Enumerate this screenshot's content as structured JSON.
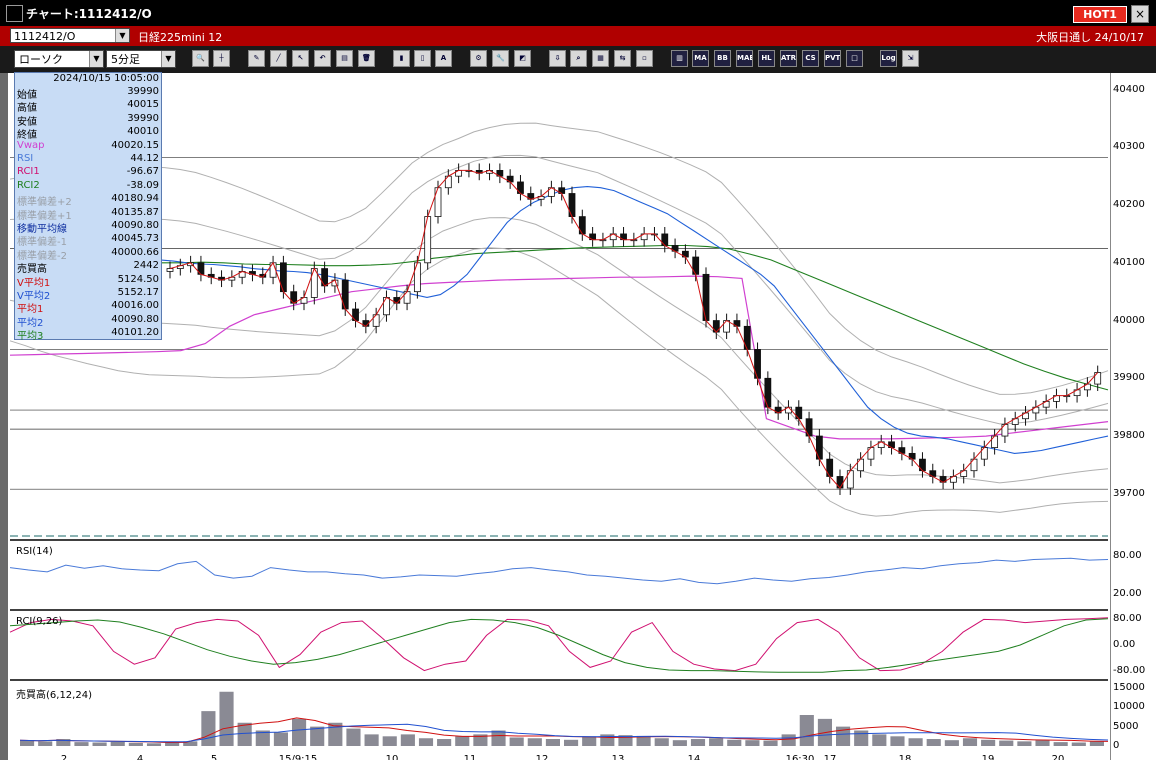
{
  "window": {
    "title": "チャート:1112412/O",
    "hot_label": "HOT1",
    "close_label": "×"
  },
  "infobar": {
    "symbol": "1112412/O",
    "instrument": "日経225mini 12",
    "exchange": "大阪日通し 24/10/17"
  },
  "toolbar": {
    "chart_type": "ローソク",
    "interval": "5分足",
    "buttons": [
      "MA",
      "BB",
      "MAE",
      "HL",
      "ATR",
      "CS",
      "PVT",
      "Log"
    ]
  },
  "info_panel": {
    "datetime": "2024/10/15 10:05:00",
    "rows": [
      {
        "k": "始値",
        "v": "39990",
        "color": "#000000"
      },
      {
        "k": "高値",
        "v": "40015",
        "color": "#000000"
      },
      {
        "k": "安値",
        "v": "39990",
        "color": "#000000"
      },
      {
        "k": "終値",
        "v": "40010",
        "color": "#000000"
      },
      {
        "k": "Vwap",
        "v": "40020.15",
        "color": "#d040d0"
      },
      {
        "k": "RSI",
        "v": "44.12",
        "color": "#4a7ad8"
      },
      {
        "k": "RCI1",
        "v": "-96.67",
        "color": "#d01070"
      },
      {
        "k": "RCI2",
        "v": "-38.09",
        "color": "#208020"
      },
      {
        "k": "標準偏差+2",
        "v": "40180.94",
        "color": "#9aa0a8"
      },
      {
        "k": "標準偏差+1",
        "v": "40135.87",
        "color": "#9aa0a8"
      },
      {
        "k": "移動平均線",
        "v": "40090.80",
        "color": "#1030a0"
      },
      {
        "k": "標準偏差-1",
        "v": "40045.73",
        "color": "#9aa0a8"
      },
      {
        "k": "標準偏差-2",
        "v": "40000.66",
        "color": "#9aa0a8"
      },
      {
        "k": "売買高",
        "v": "2442",
        "color": "#000000"
      },
      {
        "k": "V平均1",
        "v": "5124.50",
        "color": "#d01010"
      },
      {
        "k": "V平均2",
        "v": "5152.17",
        "color": "#2050d0"
      },
      {
        "k": "平均1",
        "v": "40016.00",
        "color": "#d01010"
      },
      {
        "k": "平均2",
        "v": "40090.80",
        "color": "#2050d0"
      },
      {
        "k": "平均3",
        "v": "40101.20",
        "color": "#208020"
      }
    ]
  },
  "panes": {
    "rsi_label": "RSI(14)",
    "rci_label": "RCI(9,26)",
    "vol_label": "売買高(6,12,24)"
  },
  "colors": {
    "candle_up": "#ffffff",
    "candle_down": "#111111",
    "ma_short": "#d01010",
    "ma_mid": "#2060d8",
    "ma_long": "#208020",
    "vwap": "#d040d0",
    "bands": "#b0b0b0"
  },
  "chart_data": {
    "type": "line",
    "title": "",
    "price_axis_labels": [
      "40400",
      "40300",
      "40200",
      "40100",
      "40000",
      "39900",
      "39800",
      "39700"
    ],
    "rsi_axis_labels": [
      "80.00",
      "20.00"
    ],
    "rci_axis_labels": [
      "80.00",
      "0.00",
      "-80.00"
    ],
    "vol_axis_labels": [
      "15000",
      "10000",
      "5000",
      "0"
    ],
    "x_tick_labels": [
      "2",
      "4",
      "5",
      "15/9:15",
      "10",
      "11",
      "12",
      "13",
      "14",
      "16:30",
      "17",
      "18",
      "19",
      "20"
    ],
    "ylim": [
      39620,
      40420
    ],
    "series": [
      {
        "name": "終値",
        "values": [
          40090,
          40095,
          40100,
          40080,
          40075,
          40070,
          40075,
          40085,
          40080,
          40075,
          40100,
          40050,
          40030,
          40040,
          40090,
          40060,
          40070,
          40020,
          40000,
          39990,
          40010,
          40040,
          40030,
          40050,
          40100,
          40180,
          40230,
          40250,
          40260,
          40260,
          40255,
          40260,
          40250,
          40240,
          40220,
          40210,
          40215,
          40230,
          40220,
          40180,
          40150,
          40140,
          40140,
          40150,
          40140,
          40140,
          40150,
          40150,
          40130,
          40120,
          40110,
          40080,
          40000,
          39980,
          40000,
          39990,
          39950,
          39900,
          39850,
          39840,
          39850,
          39830,
          39800,
          39760,
          39730,
          39710,
          39740,
          39760,
          39780,
          39790,
          39780,
          39770,
          39760,
          39740,
          39730,
          39720,
          39730,
          39740,
          39760,
          39780,
          39800,
          39820,
          39830,
          39840,
          39850,
          39860,
          39870,
          39870,
          39880,
          39890,
          39910
        ]
      },
      {
        "name": "平均2",
        "values": [
          40105,
          40103,
          40100,
          40098,
          40097,
          40095,
          40093,
          40090,
          40088,
          40086,
          40085,
          40083,
          40080,
          40075,
          40070,
          40065,
          40060,
          40055,
          40050,
          40045,
          40040,
          40045,
          40060,
          40080,
          40110,
          40140,
          40170,
          40190,
          40205,
          40215,
          40225,
          40230,
          40232,
          40230,
          40225,
          40215,
          40205,
          40195,
          40185,
          40170,
          40155,
          40140,
          40125,
          40110,
          40095,
          40080,
          40060,
          40030,
          40000,
          39970,
          39940,
          39910,
          39880,
          39850,
          39830,
          39815,
          39805,
          39800,
          39798,
          39795,
          39790,
          39785,
          39780,
          39775,
          39770,
          39772,
          39775,
          39780,
          39785,
          39790,
          39795,
          39800
        ]
      },
      {
        "name": "平均3",
        "values": [
          40100,
          40100,
          40101,
          40100,
          40098,
          40097,
          40097,
          40096,
          40095,
          40095,
          40096,
          40098,
          40102,
          40108,
          40112,
          40116,
          40118,
          40120,
          40122,
          40124,
          40126,
          40127,
          40128,
          40129,
          40130,
          40130,
          40128,
          40124,
          40115,
          40105,
          40090,
          40075,
          40060,
          40045,
          40030,
          40015,
          40000,
          39985,
          39970,
          39955,
          39940,
          39925,
          39912,
          39900,
          39890,
          39880
        ]
      },
      {
        "name": "Vwap",
        "values": [
          39940,
          39941,
          39942,
          39943,
          39944,
          39945,
          39946,
          39948,
          39960,
          39990,
          40010,
          40020,
          40030,
          40040,
          40050,
          40055,
          40060,
          40064,
          40066,
          40068,
          40070,
          40071,
          40072,
          40073,
          40074,
          40075,
          40075,
          40076,
          40077,
          40076,
          40073,
          39830,
          39815,
          39800,
          39795,
          39795,
          39795,
          39796,
          39797,
          39798,
          39800,
          39805,
          39810,
          39815,
          39820,
          39825
        ]
      },
      {
        "name": "RSI",
        "values": [
          62,
          58,
          55,
          66,
          61,
          65,
          60,
          58,
          57,
          68,
          72,
          50,
          45,
          48,
          62,
          58,
          55,
          55,
          52,
          50,
          45,
          47,
          50,
          49,
          48,
          52,
          55,
          60,
          62,
          58,
          55,
          50,
          48,
          45,
          42,
          40,
          44,
          38,
          36,
          40,
          45,
          42,
          40,
          44,
          46,
          50,
          55,
          58,
          62,
          60,
          65,
          68,
          70,
          74,
          72,
          75,
          76,
          77,
          74,
          75
        ]
      },
      {
        "name": "RCI1",
        "values": [
          40,
          70,
          80,
          75,
          60,
          -20,
          -60,
          -40,
          50,
          70,
          80,
          75,
          30,
          -70,
          -30,
          40,
          70,
          75,
          20,
          -40,
          -80,
          -60,
          -50,
          30,
          80,
          78,
          60,
          -20,
          -70,
          -50,
          40,
          70,
          -20,
          -60,
          -75,
          -80,
          -60,
          20,
          70,
          80,
          40,
          -40,
          -80,
          -78,
          -60,
          -20,
          40,
          80,
          78,
          70,
          75,
          80,
          82,
          85
        ]
      },
      {
        "name": "RCI2",
        "values": [
          60,
          65,
          70,
          75,
          78,
          72,
          55,
          35,
          10,
          -15,
          -35,
          -50,
          -60,
          -55,
          -45,
          -30,
          -10,
          10,
          30,
          50,
          70,
          80,
          78,
          70,
          55,
          30,
          0,
          -30,
          -55,
          -70,
          -78,
          -80,
          -80,
          -82,
          -84,
          -85,
          -85,
          -85,
          -80,
          -78,
          -70,
          -60,
          -50,
          -40,
          -30,
          -20,
          0,
          30,
          60,
          78,
          82
        ]
      },
      {
        "name": "売買高",
        "values": [
          1500,
          1200,
          1800,
          1000,
          900,
          1100,
          800,
          700,
          900,
          1200,
          9000,
          14000,
          6000,
          4000,
          3500,
          7000,
          5000,
          6000,
          4500,
          3000,
          2500,
          3000,
          2000,
          1800,
          2500,
          3000,
          4000,
          2200,
          2000,
          1800,
          1600,
          2500,
          3000,
          2800,
          2600,
          2000,
          1500,
          1800,
          2000,
          1600,
          1500,
          1400,
          3000,
          8000,
          7000,
          5000,
          4000,
          3000,
          2500,
          2000,
          1800,
          1500,
          2000,
          1600,
          1400,
          1200,
          1500,
          1000,
          900,
          1200
        ]
      }
    ]
  }
}
